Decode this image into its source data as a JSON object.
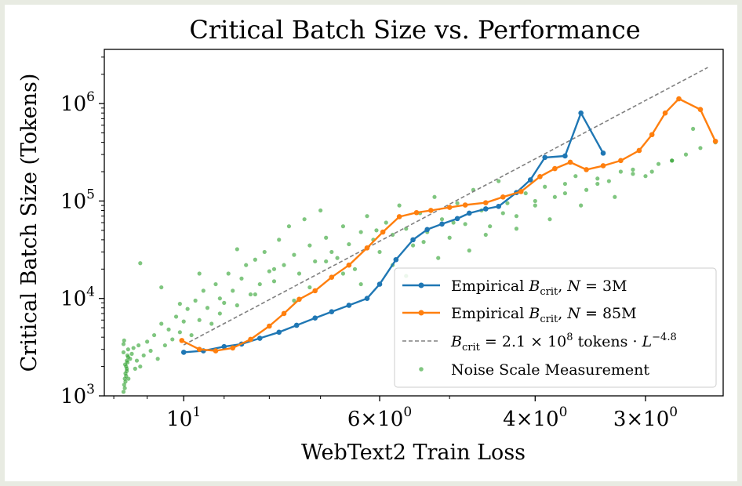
{
  "chart_data": {
    "type": "scatter",
    "title": "Critical Batch Size vs. Performance",
    "xlabel": "WebText2 Train Loss",
    "ylabel": "Critical Batch Size (Tokens)",
    "x_scale": "log",
    "x_direction": "decreasing-to-right",
    "y_scale": "log",
    "xlim": [
      12.3,
      2.45
    ],
    "ylim": [
      1000,
      3600000
    ],
    "grid": false,
    "legend_position": "lower-right",
    "x_ticks": [
      {
        "value": 10,
        "base": "10",
        "exp": "1"
      },
      {
        "value": 6,
        "base": "6×10",
        "exp": "0"
      },
      {
        "value": 4,
        "base": "4×10",
        "exp": "0"
      },
      {
        "value": 3,
        "base": "3×10",
        "exp": "0"
      }
    ],
    "y_ticks": [
      {
        "value": 1000,
        "base": "10",
        "exp": "3"
      },
      {
        "value": 10000,
        "base": "10",
        "exp": "4"
      },
      {
        "value": 100000,
        "base": "10",
        "exp": "5"
      },
      {
        "value": 1000000,
        "base": "10",
        "exp": "6"
      }
    ],
    "series": [
      {
        "name": "Empirical B_crit, N = 3M",
        "kind": "line-marker",
        "color": "#1f77b4",
        "x": [
          10.0,
          9.5,
          9.0,
          8.6,
          8.2,
          7.8,
          7.45,
          7.1,
          6.8,
          6.5,
          6.2,
          6.0,
          5.75,
          5.5,
          5.3,
          5.1,
          4.9,
          4.75,
          4.55,
          4.4,
          4.2,
          4.05,
          3.9,
          3.7
        ],
        "y": [
          2800,
          2900,
          3200,
          3400,
          3900,
          4500,
          5300,
          6300,
          7300,
          8500,
          10000,
          14000,
          25000,
          40000,
          51000,
          58000,
          66000,
          75000,
          83000,
          88000,
          122000,
          165000,
          280000,
          290000
        ],
        "extra_x": [
          3.55,
          3.35
        ],
        "extra_y": [
          800000,
          310000
        ]
      },
      {
        "name": "Empirical B_crit, N = 85M",
        "kind": "line-marker",
        "color": "#ff7f0e",
        "x": [
          10.05,
          9.6,
          9.2,
          8.8,
          8.4,
          8.0,
          7.7,
          7.4,
          7.1,
          6.8,
          6.5,
          6.2,
          5.95,
          5.7,
          5.45,
          5.25,
          5.0,
          4.8,
          4.55,
          4.35,
          4.15,
          3.95,
          3.8,
          3.65,
          3.5,
          3.35,
          3.2,
          3.05,
          2.95,
          2.85,
          2.75,
          2.6,
          2.5
        ],
        "y": [
          3700,
          3000,
          2900,
          3100,
          3800,
          5200,
          7000,
          9800,
          12000,
          16500,
          22000,
          33000,
          48000,
          69000,
          76000,
          80000,
          86000,
          91000,
          96000,
          110000,
          125000,
          178000,
          215000,
          250000,
          210000,
          230000,
          260000,
          330000,
          480000,
          800000,
          1120000,
          870000,
          410000
        ]
      },
      {
        "name": "B_crit = 2.1 × 10^8 tokens · L^-4.8",
        "kind": "dashed-fit",
        "color": "#808080",
        "coefficient": 210000000,
        "exponent": -4.8,
        "x_range": [
          10.0,
          2.55
        ]
      },
      {
        "name": "Noise Scale Measurement",
        "kind": "scatter",
        "color": "#2ca02c",
        "x": [
          11.7,
          11.68,
          11.66,
          11.64,
          11.62,
          11.6,
          11.58,
          11.56,
          11.7,
          11.68,
          11.66,
          11.64,
          11.62,
          11.6,
          11.58,
          11.56,
          11.7,
          11.65,
          11.6,
          11.55,
          11.5,
          11.45,
          11.4,
          11.35,
          11.3,
          11.25,
          11.2,
          11.1,
          11.0,
          10.9,
          10.8,
          10.7,
          10.6,
          10.5,
          10.4,
          10.3,
          10.2,
          10.1,
          10.0,
          9.9,
          9.8,
          9.7,
          9.6,
          9.5,
          9.4,
          9.3,
          9.2,
          9.1,
          9.0,
          8.9,
          8.8,
          8.7,
          8.6,
          8.5,
          8.4,
          8.3,
          8.2,
          8.1,
          8.0,
          7.9,
          7.8,
          7.7,
          7.6,
          7.5,
          7.4,
          7.3,
          7.2,
          7.1,
          7.0,
          6.9,
          6.8,
          6.7,
          6.6,
          6.5,
          6.4,
          6.3,
          6.2,
          6.1,
          6.0,
          5.9,
          5.8,
          5.7,
          5.6,
          5.5,
          5.4,
          5.3,
          5.2,
          5.1,
          5.0,
          4.9,
          4.8,
          4.7,
          4.6,
          4.5,
          4.4,
          4.3,
          4.2,
          4.1,
          4.0,
          3.9,
          3.8,
          3.7,
          3.6,
          3.5,
          3.4,
          3.3,
          3.2,
          3.1,
          3.0,
          2.9,
          2.8,
          2.7,
          2.6,
          2.5,
          11.2,
          10.6,
          10.1,
          9.6,
          9.1,
          8.7,
          8.3,
          7.9,
          7.5,
          7.2,
          6.9,
          6.6,
          6.3,
          6.05,
          5.8,
          5.6,
          5.35,
          5.15,
          4.95,
          4.75,
          4.55,
          4.35,
          4.2,
          4.0,
          3.85,
          3.7,
          3.55,
          3.4,
          3.25,
          3.1,
          2.95,
          2.8,
          2.65
        ],
        "y": [
          1100,
          1300,
          1500,
          1700,
          2000,
          2300,
          2600,
          3000,
          3400,
          3700,
          1200,
          1400,
          1600,
          1900,
          2200,
          2500,
          2800,
          2100,
          1800,
          1500,
          2400,
          2700,
          3100,
          1900,
          2300,
          3300,
          2000,
          2600,
          3600,
          2900,
          4200,
          2400,
          5500,
          3300,
          4800,
          3800,
          6500,
          4500,
          5800,
          7800,
          4200,
          9500,
          6000,
          12000,
          8000,
          5500,
          14000,
          10000,
          9000,
          18000,
          12000,
          8500,
          16000,
          22000,
          11000,
          25000,
          14000,
          30000,
          19000,
          15000,
          40000,
          22000,
          55000,
          28000,
          18000,
          65000,
          35000,
          24000,
          80000,
          42000,
          30000,
          26000,
          55000,
          36000,
          20000,
          48000,
          70000,
          40000,
          30000,
          60000,
          45000,
          90000,
          52000,
          35000,
          75000,
          48000,
          110000,
          65000,
          42000,
          95000,
          58000,
          130000,
          80000,
          55000,
          160000,
          95000,
          70000,
          120000,
          90000,
          140000,
          110000,
          150000,
          180000,
          130000,
          170000,
          160000,
          200000,
          210000,
          180000,
          240000,
          260000,
          300000,
          350000,
          400000,
          23000,
          13000,
          8800,
          18000,
          7000,
          32000,
          11000,
          20000,
          9500,
          13000,
          24000,
          18000,
          14000,
          50000,
          22000,
          17000,
          38000,
          26000,
          60000,
          31000,
          45000,
          75000,
          52000,
          100000,
          65000,
          120000,
          90000,
          150000,
          110000,
          190000,
          200000,
          260000,
          550000
        ]
      }
    ],
    "legend": [
      {
        "prefix": "Empirical ",
        "sym": "B",
        "sub": "crit",
        "mid": ", ",
        "var": "N",
        "rest": " = 3M"
      },
      {
        "prefix": "Empirical ",
        "sym": "B",
        "sub": "crit",
        "mid": ", ",
        "var": "N",
        "rest": " = 85M"
      },
      {
        "prefix": "",
        "sym": "B",
        "sub": "crit",
        "mid": " = 2.1 × 10",
        "sup": "8",
        "rest": " tokens · ",
        "var": "L",
        "sup2": "−4.8"
      },
      {
        "prefix": "Noise Scale Measurement",
        "sym": "",
        "sub": "",
        "mid": "",
        "var": "",
        "rest": ""
      }
    ]
  }
}
